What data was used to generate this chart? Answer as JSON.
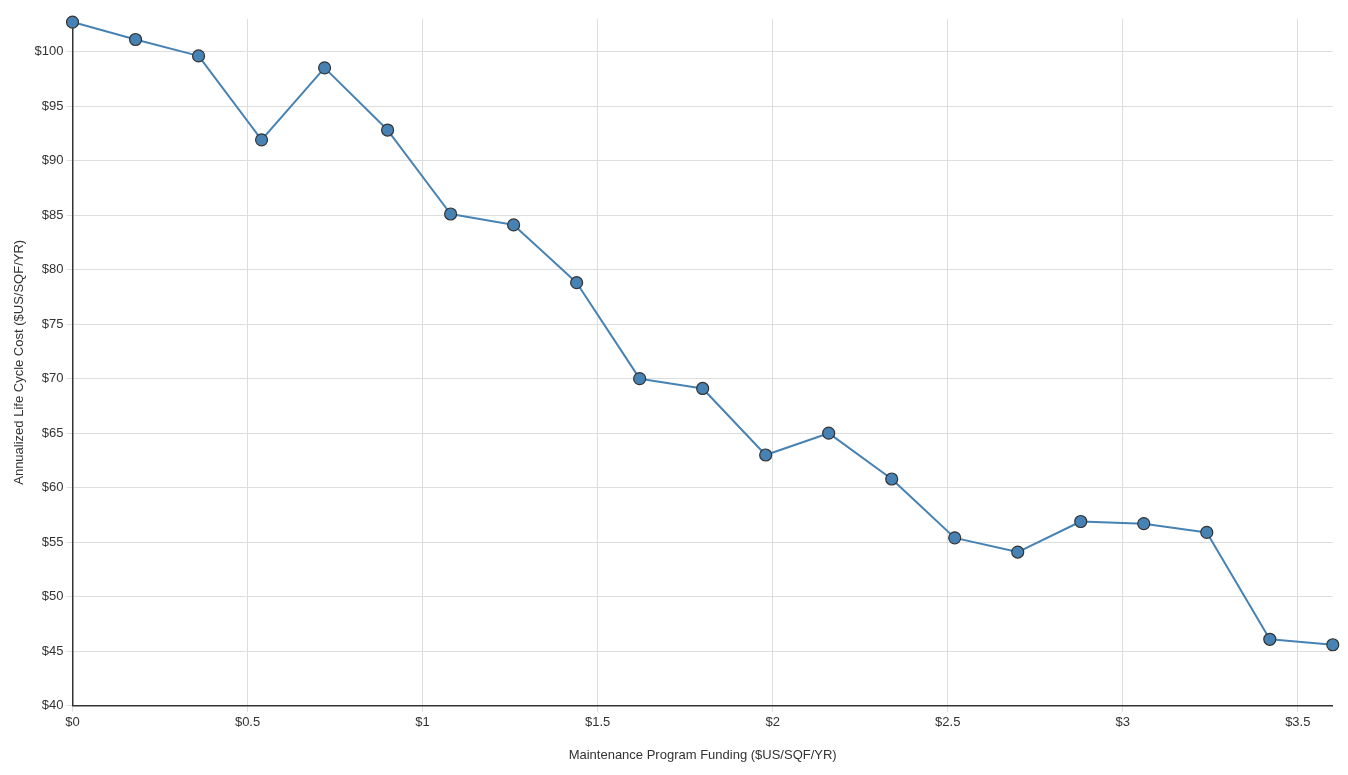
{
  "chart_data": {
    "type": "line",
    "xlabel": "Maintenance Program Funding ($US/SQF/YR)",
    "ylabel": "Annualized Life Cycle Cost ($US/SQF/YR)",
    "x": [
      0,
      0.18,
      0.36,
      0.54,
      0.72,
      0.9,
      1.08,
      1.26,
      1.44,
      1.62,
      1.8,
      1.98,
      2.16,
      2.34,
      2.52,
      2.7,
      2.88,
      3.06,
      3.24,
      3.42,
      3.6
    ],
    "series": [
      {
        "color": "#4682b4",
        "values": [
          102.7,
          101.1,
          99.6,
          91.9,
          98.5,
          92.8,
          85.1,
          84.1,
          78.8,
          70.0,
          69.1,
          63.0,
          65.0,
          60.8,
          55.4,
          54.1,
          56.9,
          56.7,
          55.9,
          46.1,
          45.6
        ]
      }
    ],
    "xlim": [
      0,
      3.6
    ],
    "ylim": [
      40,
      103
    ],
    "xticks": [
      {
        "value": 0,
        "label": "$0"
      },
      {
        "value": 0.5,
        "label": "$0.5"
      },
      {
        "value": 1,
        "label": "$1"
      },
      {
        "value": 1.5,
        "label": "$1.5"
      },
      {
        "value": 2,
        "label": "$2"
      },
      {
        "value": 2.5,
        "label": "$2.5"
      },
      {
        "value": 3,
        "label": "$3"
      },
      {
        "value": 3.5,
        "label": "$3.5"
      }
    ],
    "yticks": [
      {
        "value": 40,
        "label": "$40"
      },
      {
        "value": 45,
        "label": "$45"
      },
      {
        "value": 50,
        "label": "$50"
      },
      {
        "value": 55,
        "label": "$55"
      },
      {
        "value": 60,
        "label": "$60"
      },
      {
        "value": 65,
        "label": "$65"
      },
      {
        "value": 70,
        "label": "$70"
      },
      {
        "value": 75,
        "label": "$75"
      },
      {
        "value": 80,
        "label": "$80"
      },
      {
        "value": 85,
        "label": "$85"
      },
      {
        "value": 90,
        "label": "$90"
      },
      {
        "value": 95,
        "label": "$95"
      },
      {
        "value": 100,
        "label": "$100"
      }
    ],
    "grid": true,
    "legend": false,
    "marker": "circle",
    "line_style": "solid"
  }
}
